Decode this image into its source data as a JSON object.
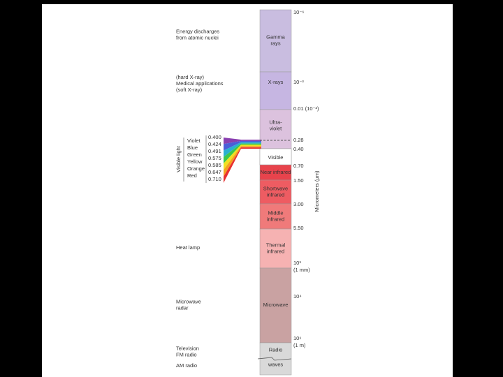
{
  "bands": [
    {
      "label": [
        "Gamma",
        "rays"
      ],
      "color": "#c9bde0"
    },
    {
      "label": [
        "X-rays"
      ],
      "color": "#c6b6e2"
    },
    {
      "label": [
        "Ultra-",
        "violet"
      ],
      "color": "#dcc2de"
    },
    {
      "label": [
        "Visible"
      ],
      "color": "#ffffff"
    },
    {
      "label": [
        "Near infrared"
      ],
      "color": "#e8434c"
    },
    {
      "label": [
        "Shortwave",
        "infrared"
      ],
      "color": "#ee5c62"
    },
    {
      "label": [
        "Middle",
        "infrared"
      ],
      "color": "#f07a7a"
    },
    {
      "label": [
        "Thermal",
        "infrared"
      ],
      "color": "#f6b2b2"
    },
    {
      "label": [
        "Microwave"
      ],
      "color": "#c9a2a2"
    },
    {
      "label": [
        "Radio",
        "waves"
      ],
      "color": "#d9d9d9"
    }
  ],
  "scale": [
    [
      "10⁻⁶"
    ],
    [
      "10⁻³"
    ],
    [
      "0.01 (10⁻²)"
    ],
    [
      "0.28"
    ],
    [
      "0.40"
    ],
    [
      "0.70"
    ],
    [
      "1.50"
    ],
    [
      "3.00"
    ],
    [
      "5.50"
    ],
    [
      "10³",
      "(1 mm)"
    ],
    [
      "10⁴"
    ],
    [
      "10⁶",
      "(1 m)"
    ]
  ],
  "axis_label": "Micrometers (µm)",
  "uses": [
    [
      "Energy discharges",
      "from atomic nuclei"
    ],
    [
      "(hard X-ray)",
      "Medical applications",
      "(soft X-ray)"
    ],
    [
      "Heat lamp"
    ],
    [
      "Microwave",
      "radar"
    ],
    [
      "Television",
      "FM radio"
    ],
    [
      "AM radio"
    ]
  ],
  "visible_light": {
    "title": "Visible light",
    "colors": [
      {
        "name": "Violet",
        "value": "0.400"
      },
      {
        "name": "Blue",
        "value": "0.424"
      },
      {
        "name": "Green",
        "value": "0.491"
      },
      {
        "name": "Yellow",
        "value": "0.575"
      },
      {
        "name": "Orange",
        "value": "0.585"
      },
      {
        "name": "Red",
        "value": "0.647"
      },
      {
        "name": "",
        "value": "0.710"
      }
    ]
  }
}
